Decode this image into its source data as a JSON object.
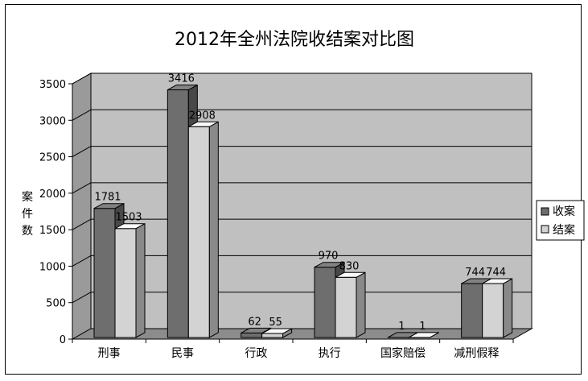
{
  "chart_data": {
    "type": "bar",
    "title": "2012年全州法院收结案对比图",
    "ylabel": "案件数",
    "xlabel": "",
    "ylim": [
      0,
      3500
    ],
    "yticks": [
      0,
      500,
      1000,
      1500,
      2000,
      2500,
      3000,
      3500
    ],
    "grid": true,
    "legend_position": "right",
    "categories": [
      "刑事",
      "民事",
      "行政",
      "执行",
      "国家赔偿",
      "减刑假释"
    ],
    "series": [
      {
        "name": "收案",
        "color": "#6e6e6e",
        "values": [
          1781,
          3416,
          62,
          970,
          1,
          744
        ]
      },
      {
        "name": "结案",
        "color": "#d3d3d3",
        "values": [
          1503,
          2908,
          55,
          830,
          1,
          744
        ]
      }
    ]
  }
}
